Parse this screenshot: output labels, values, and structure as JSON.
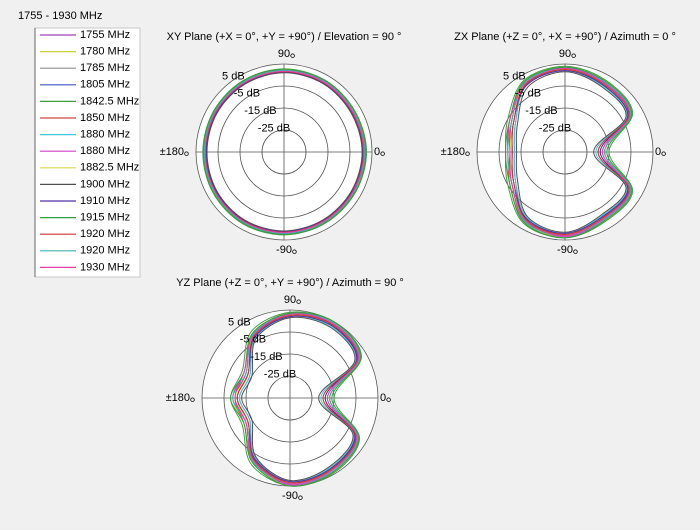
{
  "chart_data": {
    "type": "polar",
    "legend_title": "1755 - 1930 MHz",
    "theta": [
      0,
      30,
      60,
      90,
      120,
      150,
      180,
      -150,
      -120,
      -90,
      -60,
      -30
    ],
    "rlim": [
      -35,
      5
    ],
    "rticks": [
      {
        "value": 5,
        "label": "5 dB"
      },
      {
        "value": -5,
        "label": "-5 dB"
      },
      {
        "value": -15,
        "label": "-15 dB"
      },
      {
        "value": -25,
        "label": "-25 dB"
      }
    ],
    "thetaticks": [
      0,
      90,
      {
        "value": 180,
        "label": "±180"
      },
      -90
    ],
    "plots": [
      {
        "title": "XY Plane (+X = 0°, +Y = +90°) / Elevation = 90 °"
      },
      {
        "title": "ZX Plane (+Z = 0°, +X = +90°) / Azimuth = 0 °"
      },
      {
        "title": "YZ Plane (+Z = 0°, +Y = +90°) / Azimuth = 90 °"
      }
    ],
    "series": [
      {
        "name": "1755 MHz",
        "color": "#a040c0",
        "values": [
          [
            1.5,
            1.2,
            1.8,
            2.0,
            1.6,
            1.2,
            1.0,
            1.3,
            1.7,
            1.9,
            1.5,
            1.4
          ],
          [
            -18,
            -1,
            1,
            3,
            1,
            -7,
            -10,
            -7,
            1,
            3,
            0,
            -1
          ],
          [
            -18,
            1,
            4,
            3,
            -2,
            -12,
            -10,
            -12,
            -2,
            4,
            3,
            0
          ]
        ]
      },
      {
        "name": "1780 MHz",
        "color": "#c8d040",
        "values": [
          [
            2.0,
            1.8,
            2.2,
            2.3,
            2.0,
            1.7,
            1.5,
            1.8,
            2.1,
            2.2,
            2.0,
            1.9
          ],
          [
            -16,
            0,
            2,
            3.5,
            2,
            -6,
            -9,
            -6,
            2,
            3.5,
            1,
            0
          ],
          [
            -16,
            2,
            5,
            3.5,
            -1,
            -11,
            -9,
            -11,
            -1,
            4.5,
            4,
            1
          ]
        ]
      },
      {
        "name": "1785 MHz",
        "color": "#909090",
        "values": [
          [
            1.0,
            0.8,
            1.2,
            1.5,
            1.1,
            0.8,
            0.6,
            0.9,
            1.2,
            1.4,
            1.1,
            1.0
          ],
          [
            -20,
            -2,
            0,
            2.5,
            0,
            -8,
            -11,
            -8,
            0,
            2.5,
            -1,
            -2
          ],
          [
            -20,
            0,
            3,
            2.5,
            -3,
            -13,
            -11,
            -13,
            -3,
            3.5,
            2,
            -1
          ]
        ]
      },
      {
        "name": "1805 MHz",
        "color": "#4050c8",
        "values": [
          [
            0.8,
            0.6,
            1.0,
            1.2,
            0.9,
            0.5,
            0.3,
            0.6,
            1.0,
            1.1,
            0.9,
            0.7
          ],
          [
            -17,
            -1.5,
            1.5,
            3,
            0.5,
            -9,
            -12,
            -9,
            0.5,
            3,
            -0.5,
            -1.5
          ],
          [
            -17,
            0.5,
            3.5,
            3,
            -2.5,
            -14,
            -12,
            -14,
            -2.5,
            4,
            2.5,
            -0.5
          ]
        ]
      },
      {
        "name": "1842.5 MHz",
        "color": "#40a040",
        "values": [
          [
            2.5,
            2.2,
            2.6,
            2.8,
            2.4,
            2.0,
            1.9,
            2.2,
            2.6,
            2.7,
            2.4,
            2.3
          ],
          [
            -15,
            0.5,
            2.5,
            4,
            2.5,
            -5,
            -8,
            -5,
            2.5,
            4,
            1.5,
            0.5
          ],
          [
            -15,
            2.5,
            5,
            4,
            0,
            -10,
            -8,
            -10,
            0,
            5,
            4.5,
            1.5
          ]
        ]
      },
      {
        "name": "1850 MHz",
        "color": "#d04848",
        "values": [
          [
            1.8,
            1.5,
            2.0,
            2.2,
            1.8,
            1.4,
            1.2,
            1.5,
            1.9,
            2.1,
            1.8,
            1.6
          ],
          [
            -19,
            -0.5,
            1,
            3,
            1.5,
            -7,
            -10,
            -6,
            1.5,
            3,
            0,
            -0.5
          ],
          [
            -19,
            1.5,
            4,
            3,
            -1.5,
            -12,
            -10,
            -11,
            -1.5,
            4,
            3,
            0.5
          ]
        ]
      },
      {
        "name": "1880 MHz",
        "color": "#40c8d8",
        "values": [
          [
            1.2,
            1.0,
            1.4,
            1.6,
            1.3,
            0.9,
            0.8,
            1.1,
            1.4,
            1.5,
            1.2,
            1.1
          ],
          [
            -21,
            -2.5,
            -0.5,
            2,
            0,
            -9,
            -12,
            -9,
            -0.5,
            2,
            -1.5,
            -2.5
          ],
          [
            -21,
            -0.5,
            2.5,
            2,
            -3.5,
            -14,
            -12,
            -14,
            -3.5,
            3,
            1.5,
            -1.5
          ]
        ]
      },
      {
        "name": "1880 MHz",
        "color": "#d040c8",
        "values": [
          [
            1.6,
            1.4,
            1.9,
            2.1,
            1.7,
            1.3,
            1.1,
            1.4,
            1.8,
            2.0,
            1.7,
            1.5
          ],
          [
            -17,
            -1,
            1.5,
            3.5,
            1,
            -6,
            -9,
            -7,
            1,
            3.5,
            0.5,
            -1
          ],
          [
            -17,
            1,
            4.5,
            3.5,
            -2,
            -11,
            -9,
            -12,
            -2,
            4.5,
            3.5,
            0
          ]
        ]
      },
      {
        "name": "1882.5 MHz",
        "color": "#d8d848",
        "values": [
          [
            1.4,
            1.1,
            1.6,
            1.8,
            1.4,
            1.1,
            0.9,
            1.2,
            1.5,
            1.7,
            1.4,
            1.3
          ],
          [
            -18,
            -1,
            0.5,
            2.5,
            1,
            -8,
            -10,
            -8,
            1,
            2.5,
            0,
            -1
          ],
          [
            -18,
            1,
            3.5,
            2.5,
            -2,
            -13,
            -10,
            -13,
            -2,
            3.5,
            3,
            0
          ]
        ]
      },
      {
        "name": "1900 MHz",
        "color": "#505050",
        "values": [
          [
            0.5,
            0.3,
            0.8,
            1.0,
            0.6,
            0.2,
            0.0,
            0.3,
            0.7,
            0.9,
            0.6,
            0.4
          ],
          [
            -22,
            -3,
            -1,
            1.5,
            -1,
            -10,
            -13,
            -10,
            -1,
            1.5,
            -2,
            -3
          ],
          [
            -22,
            -1,
            2,
            1.5,
            -4,
            -15,
            -13,
            -15,
            -4,
            2.5,
            1,
            -2
          ]
        ]
      },
      {
        "name": "1910 MHz",
        "color": "#5030a8",
        "values": [
          [
            0.9,
            0.7,
            1.1,
            1.3,
            1.0,
            0.6,
            0.4,
            0.7,
            1.1,
            1.2,
            0.9,
            0.8
          ],
          [
            -19,
            -2,
            0,
            2,
            0,
            -8,
            -11,
            -8,
            0,
            2,
            -1,
            -2
          ],
          [
            -19,
            0,
            3,
            2,
            -3,
            -13,
            -11,
            -13,
            -3,
            3,
            2,
            -1
          ]
        ]
      },
      {
        "name": "1915 MHz",
        "color": "#30a040",
        "values": [
          [
            2.2,
            2.0,
            2.4,
            2.6,
            2.2,
            1.8,
            1.6,
            2.0,
            2.3,
            2.5,
            2.2,
            2.1
          ],
          [
            -16,
            0,
            2,
            3.5,
            2,
            -6,
            -8,
            -6,
            2,
            4,
            1,
            0
          ],
          [
            -16,
            2,
            5,
            3.5,
            -1,
            -11,
            -8,
            -11,
            -1,
            5,
            4,
            1
          ]
        ]
      },
      {
        "name": "1920 MHz",
        "color": "#d03030",
        "values": [
          [
            1.1,
            0.9,
            1.3,
            1.5,
            1.2,
            0.8,
            0.7,
            1.0,
            1.3,
            1.4,
            1.1,
            1.0
          ],
          [
            -20,
            -1.5,
            0.5,
            2.5,
            0.5,
            -8,
            -11,
            -8,
            0.5,
            2.5,
            -0.5,
            -1.5
          ],
          [
            -20,
            0.5,
            3.5,
            2.5,
            -2.5,
            -13,
            -11,
            -13,
            -2.5,
            3.5,
            2.5,
            -0.5
          ]
        ]
      },
      {
        "name": "1920 MHz",
        "color": "#40b0b0",
        "values": [
          [
            1.7,
            1.5,
            1.9,
            2.1,
            1.8,
            1.4,
            1.2,
            1.5,
            1.9,
            2.0,
            1.7,
            1.6
          ],
          [
            -17,
            -0.5,
            1.5,
            3,
            1.5,
            -7,
            -9,
            -7,
            1.5,
            3,
            0.5,
            -0.5
          ],
          [
            -17,
            1.5,
            4.5,
            3,
            -1.5,
            -12,
            -9,
            -12,
            -1.5,
            4,
            3.5,
            0.5
          ]
        ]
      },
      {
        "name": "1930 MHz",
        "color": "#e040a8",
        "values": [
          [
            1.3,
            1.1,
            1.5,
            1.7,
            1.3,
            1.0,
            0.8,
            1.1,
            1.5,
            1.6,
            1.3,
            1.2
          ],
          [
            -18,
            -1,
            1,
            3,
            1,
            -6,
            -10,
            -7,
            1,
            3,
            0,
            -1
          ],
          [
            -18,
            1,
            4,
            3,
            -2,
            -11,
            -10,
            -12,
            -2,
            4,
            3,
            0
          ]
        ]
      }
    ]
  }
}
